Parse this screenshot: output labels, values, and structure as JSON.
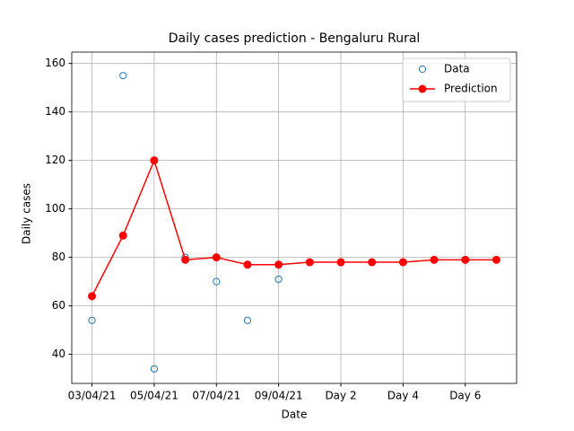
{
  "chart_data": {
    "type": "line",
    "title": "Daily cases prediction - Bengaluru Rural",
    "xlabel": "Date",
    "ylabel": "Daily cases",
    "xlim": [
      -0.65,
      13.65
    ],
    "xticks": [
      {
        "value": 0,
        "label": "03/04/21"
      },
      {
        "value": 2,
        "label": "05/04/21"
      },
      {
        "value": 4,
        "label": "07/04/21"
      },
      {
        "value": 6,
        "label": "09/04/21"
      },
      {
        "value": 8,
        "label": "Day 2"
      },
      {
        "value": 10,
        "label": "Day 4"
      },
      {
        "value": 12,
        "label": "Day 6"
      }
    ],
    "ylim": [
      28,
      164.7
    ],
    "yticks": [
      40,
      60,
      80,
      100,
      120,
      140,
      160
    ],
    "grid": true,
    "legend": "upper right",
    "series": [
      {
        "name": "Data",
        "color": "#1f77b4",
        "style": "markers",
        "x": [
          0,
          1,
          2,
          3,
          4,
          5,
          6
        ],
        "values": [
          54,
          155,
          34,
          80,
          70,
          54,
          71
        ]
      },
      {
        "name": "Prediction",
        "color": "#ff0000",
        "style": "line-markers",
        "x": [
          0,
          1,
          2,
          3,
          4,
          5,
          6,
          7,
          8,
          9,
          10,
          11,
          12,
          13
        ],
        "values": [
          64,
          89,
          120,
          79,
          80,
          77,
          77,
          78,
          78,
          78,
          78,
          79,
          79,
          79
        ]
      }
    ]
  }
}
